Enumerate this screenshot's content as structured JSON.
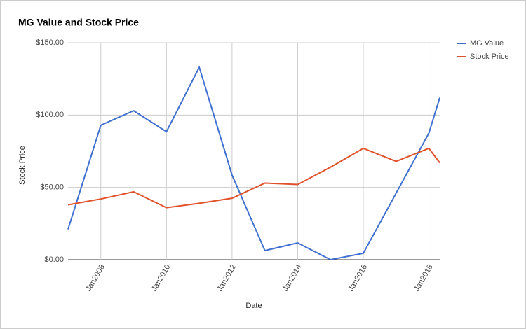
{
  "chart_data": {
    "type": "line",
    "title": "MG Value and Stock Price",
    "x_label": "Date",
    "y_label": "Stock Price",
    "x": [
      2007,
      2008,
      2009,
      2010,
      2011,
      2012,
      2013,
      2014,
      2015,
      2016,
      2017,
      2018,
      2018.33
    ],
    "series": [
      {
        "name": "MG Value",
        "color": "#3f6fcf",
        "values": [
          21,
          93,
          103,
          88.5,
          133,
          58.5,
          6.3,
          11.6,
          0,
          4.4,
          46,
          87.6,
          112
        ]
      },
      {
        "name": "Stock Price",
        "color": "#e0522b",
        "values": [
          38,
          42,
          47,
          36,
          39,
          42.5,
          53,
          52,
          64,
          77,
          68,
          77,
          67
        ]
      }
    ],
    "xlim": [
      2007,
      2018.33
    ],
    "xticks": [
      {
        "value": 2008,
        "label": "Jan2008"
      },
      {
        "value": 2010,
        "label": "Jan2010"
      },
      {
        "value": 2012,
        "label": "Jan2012"
      },
      {
        "value": 2014,
        "label": "Jan2014"
      },
      {
        "value": 2016,
        "label": "Jan2016"
      },
      {
        "value": 2018,
        "label": "Jan2018"
      }
    ],
    "ylim": [
      0,
      150
    ],
    "yticks": [
      {
        "value": 0,
        "label": "$0.00"
      },
      {
        "value": 50,
        "label": "$50.00"
      },
      {
        "value": 100,
        "label": "$100.00"
      },
      {
        "value": 150,
        "label": "$150.00"
      }
    ],
    "grid": true,
    "legend": "right"
  }
}
